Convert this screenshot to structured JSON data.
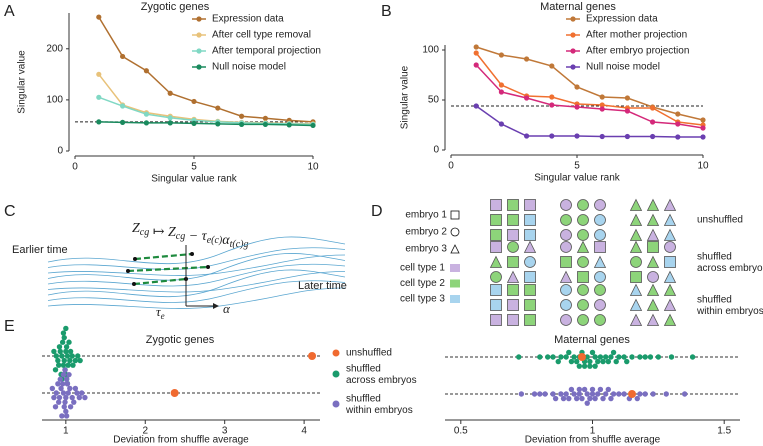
{
  "panel_labels": [
    "A",
    "B",
    "C",
    "D",
    "E"
  ],
  "chart_data": [
    {
      "type": "line",
      "title": "Zygotic genes",
      "xlabel": "Singular value rank",
      "ylabel": "Singular value",
      "x": [
        1,
        2,
        3,
        4,
        5,
        6,
        7,
        8,
        9,
        10
      ],
      "xlim": [
        0,
        10
      ],
      "xticks": [
        0,
        5,
        10
      ],
      "ylim": [
        0,
        270
      ],
      "yticks": [
        0,
        100,
        200
      ],
      "hline": 57,
      "legend": "upper right",
      "series": [
        {
          "name": "Expression data",
          "color": "#b07030",
          "values": [
            262,
            185,
            157,
            113,
            97,
            84,
            68,
            64,
            60,
            57
          ]
        },
        {
          "name": "After cell type removal",
          "color": "#e8c27a",
          "values": [
            150,
            90,
            75,
            68,
            62,
            58,
            56,
            55,
            54,
            53
          ]
        },
        {
          "name": "After temporal projection",
          "color": "#80d8c4",
          "values": [
            105,
            88,
            72,
            65,
            60,
            57,
            55,
            54,
            53,
            52
          ]
        },
        {
          "name": "Null noise model",
          "color": "#1a8a5e",
          "values": [
            57,
            56,
            55,
            55,
            54,
            53,
            52,
            52,
            51,
            50
          ]
        }
      ]
    },
    {
      "type": "line",
      "title": "Maternal genes",
      "xlabel": "Singular value rank",
      "ylabel": "Singular value",
      "x": [
        1,
        2,
        3,
        4,
        5,
        6,
        7,
        8,
        9,
        10
      ],
      "xlim": [
        0,
        10
      ],
      "xticks": [
        0,
        5,
        10
      ],
      "ylim": [
        0,
        105
      ],
      "yticks": [
        0,
        50,
        100
      ],
      "hline": 44,
      "legend": "upper right",
      "series": [
        {
          "name": "Expression data",
          "color": "#c07838",
          "values": [
            103,
            95,
            91,
            84,
            63,
            53,
            52,
            43,
            36,
            30
          ]
        },
        {
          "name": "After mother projection",
          "color": "#f07030",
          "values": [
            97,
            65,
            54,
            53,
            46,
            45,
            42,
            42,
            28,
            25
          ]
        },
        {
          "name": "After embryo projection",
          "color": "#d4297a",
          "values": [
            85,
            58,
            52,
            45,
            43,
            41,
            39,
            28,
            26,
            22
          ]
        },
        {
          "name": "Null noise model",
          "color": "#6a3fb0",
          "values": [
            44,
            26,
            14,
            14,
            14,
            13.5,
            13.5,
            13.5,
            13,
            13
          ]
        }
      ]
    },
    {
      "type": "strip",
      "title": "Zygotic genes",
      "xlabel": "Deviation from shuffle average",
      "xlim": [
        0.7,
        4.2
      ],
      "xticks": [
        1,
        2,
        3,
        4
      ],
      "series": [
        {
          "name": "unshuffled",
          "color": "#f06a30",
          "values": [
            4.1,
            2.37
          ]
        },
        {
          "name": "shuffled\nacross embryos",
          "color": "#1a9b6c",
          "values": [
            0.95,
            1.02,
            0.98,
            1.05,
            0.9,
            1.0,
            1.08,
            0.93,
            0.97,
            1.01,
            1.12,
            0.88,
            0.99,
            1.03,
            0.96,
            1.06,
            0.92,
            1.0,
            1.15,
            0.85,
            0.98,
            1.04,
            0.94,
            1.01,
            1.09,
            0.91,
            0.97,
            1.02,
            1.18,
            0.87,
            1.0,
            0.95
          ]
        },
        {
          "name": "shuffled\nwithin embryos",
          "color": "#7a6fc0",
          "values": [
            0.97,
            1.03,
            0.92,
            1.08,
            0.88,
            1.0,
            1.14,
            0.94,
            0.99,
            1.05,
            0.85,
            1.2,
            0.96,
            1.02,
            0.91,
            1.1,
            0.98,
            1.01,
            0.83,
            1.06,
            0.93,
            1.0,
            1.17,
            0.9,
            0.97,
            1.04,
            0.95,
            1.12,
            0.87,
            1.01,
            0.99,
            1.24
          ]
        }
      ]
    },
    {
      "type": "strip",
      "title": "Maternal genes",
      "xlabel": "Deviation from shuffle average",
      "xlim": [
        0.44,
        1.56
      ],
      "xticks": [
        0.5,
        1,
        1.5
      ],
      "series": [
        {
          "color": "#f06a30",
          "values": [
            0.96,
            1.15
          ]
        },
        {
          "color": "#1a9b6c",
          "values": [
            0.93,
            1.05,
            0.8,
            1.12,
            0.98,
            1.2,
            0.88,
            1.01,
            1.3,
            0.95,
            1.07,
            0.72,
            1.02,
            0.9,
            1.15,
            0.97,
            1.25,
            0.85,
            1.04,
            0.99,
            1.38,
            0.92,
            1.1,
            0.96,
            1.0,
            1.18,
            0.87,
            1.06,
            0.94,
            1.03,
            0.83,
            1.13,
            0.97,
            1.09,
            0.91,
            1.01,
            1.22,
            0.95,
            1.08,
            0.99
          ]
        },
        {
          "color": "#7a6fc0",
          "values": [
            0.9,
            1.08,
            0.78,
            1.15,
            0.95,
            1.02,
            0.85,
            1.2,
            0.98,
            1.05,
            0.73,
            1.12,
            0.93,
            1.0,
            1.28,
            0.88,
            1.04,
            0.96,
            1.18,
            0.82,
            1.01,
            1.35,
            0.91,
            1.1,
            0.97,
            0.86,
            1.07,
            0.94,
            1.23,
            0.99,
            0.8,
            1.03,
            1.14,
            0.92,
            1.0,
            0.89,
            1.06,
            0.95,
            1.17,
            0.98
          ]
        }
      ]
    }
  ],
  "panel_c": {
    "formula": [
      {
        "text": "Z",
        "sub": "cg"
      },
      {
        "text": " ↦ Z",
        "sub": "cg"
      },
      {
        "text": " − τ",
        "sub": "e(c)"
      },
      {
        "text": "α",
        "sub": "t(c)g"
      }
    ],
    "earlier": "Earlier time",
    "later": "Later time",
    "tau": {
      "text": "τ",
      "sub": "e"
    },
    "alpha": "α"
  },
  "panel_d": {
    "embryos": [
      "embryo 1",
      "embryo 2",
      "embryo 3"
    ],
    "cell_types": [
      "cell type 1",
      "cell type 2",
      "cell type 3"
    ],
    "rows": [
      "unshuffled",
      "shuffled\nacross embryos",
      "shuffled\nwithin embryos"
    ]
  }
}
